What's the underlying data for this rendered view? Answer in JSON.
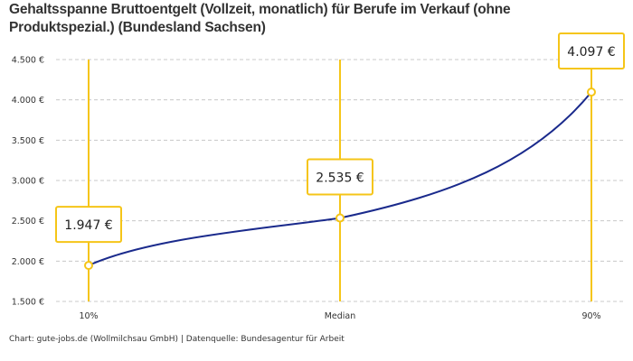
{
  "chart_data": {
    "type": "line",
    "title": "Gehaltsspanne Bruttoentgelt (Vollzeit, monatlich) für Berufe im Verkauf (ohne Produktspezial.) (Bundesland Sachsen)",
    "categories": [
      "10%",
      "Median",
      "90%"
    ],
    "values": [
      1947,
      2535,
      4097
    ],
    "data_labels": [
      "1.947 €",
      "2.535 €",
      "4.097 €"
    ],
    "ylim": [
      1500,
      4500
    ],
    "yticks": [
      1500,
      2000,
      2500,
      3000,
      3500,
      4000,
      4500
    ],
    "ytick_labels": [
      "1.500 €",
      "2.000 €",
      "2.500 €",
      "3.000 €",
      "3.500 €",
      "4.000 €",
      "4.500 €"
    ],
    "grid": true,
    "colors": {
      "line": "#1a2a8c",
      "marker": "#f5c518"
    }
  },
  "source": "Chart: gute-jobs.de (Wollmilchsau GmbH) | Datenquelle: Bundesagentur für Arbeit"
}
